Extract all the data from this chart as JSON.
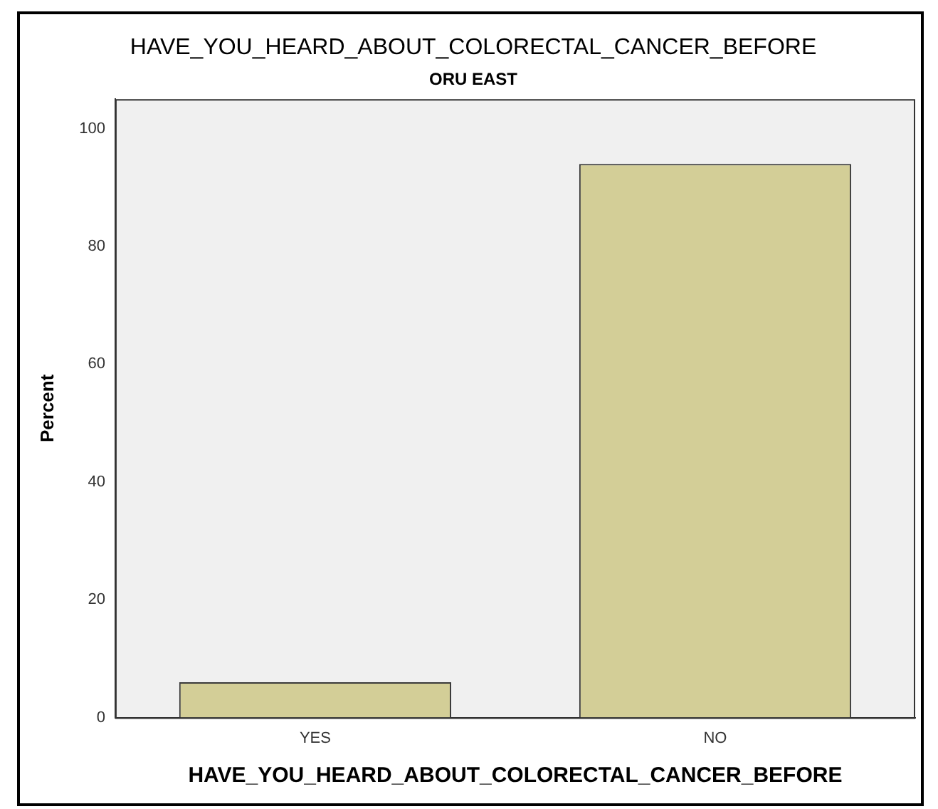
{
  "chart_data": {
    "type": "bar",
    "title": "HAVE_YOU_HEARD_ABOUT_COLORECTAL_CANCER_BEFORE",
    "subtitle": "ORU EAST",
    "xlabel": "HAVE_YOU_HEARD_ABOUT_COLORECTAL_CANCER_BEFORE",
    "ylabel": "Percent",
    "categories": [
      "YES",
      "NO"
    ],
    "values": [
      6,
      94
    ],
    "color": "#d3ce97",
    "ylim": [
      0,
      105
    ],
    "yticks": [
      0,
      20,
      40,
      60,
      80,
      100
    ],
    "grid": false,
    "legend": false
  }
}
